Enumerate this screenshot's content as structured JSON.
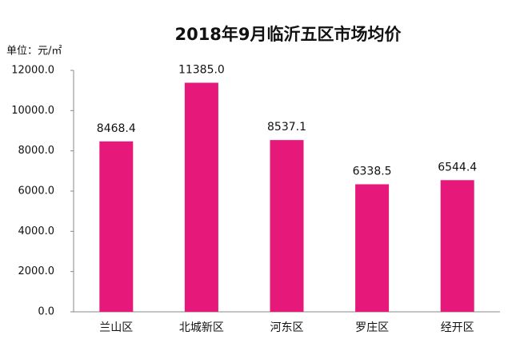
{
  "chart_data": {
    "type": "bar",
    "title": "2018年9月临沂五区市场均价",
    "unit_label": "单位：元/㎡",
    "categories": [
      "兰山区",
      "北城新区",
      "河东区",
      "罗庄区",
      "经开区"
    ],
    "values": [
      8468.4,
      11385.0,
      8537.1,
      6338.5,
      6544.4
    ],
    "value_labels": [
      "8468.4",
      "11385.0",
      "8537.1",
      "6338.5",
      "6544.4"
    ],
    "color": "#e6197a",
    "ylim": [
      0,
      12000
    ],
    "yticks": [
      {
        "value": 0,
        "label": "0.0"
      },
      {
        "value": 2000,
        "label": "2000.0"
      },
      {
        "value": 4000,
        "label": "4000.0"
      },
      {
        "value": 6000,
        "label": "6000.0"
      },
      {
        "value": 8000,
        "label": "8000.0"
      },
      {
        "value": 10000,
        "label": "10000.0"
      },
      {
        "value": 12000,
        "label": "12000.0"
      }
    ],
    "grid": false
  }
}
